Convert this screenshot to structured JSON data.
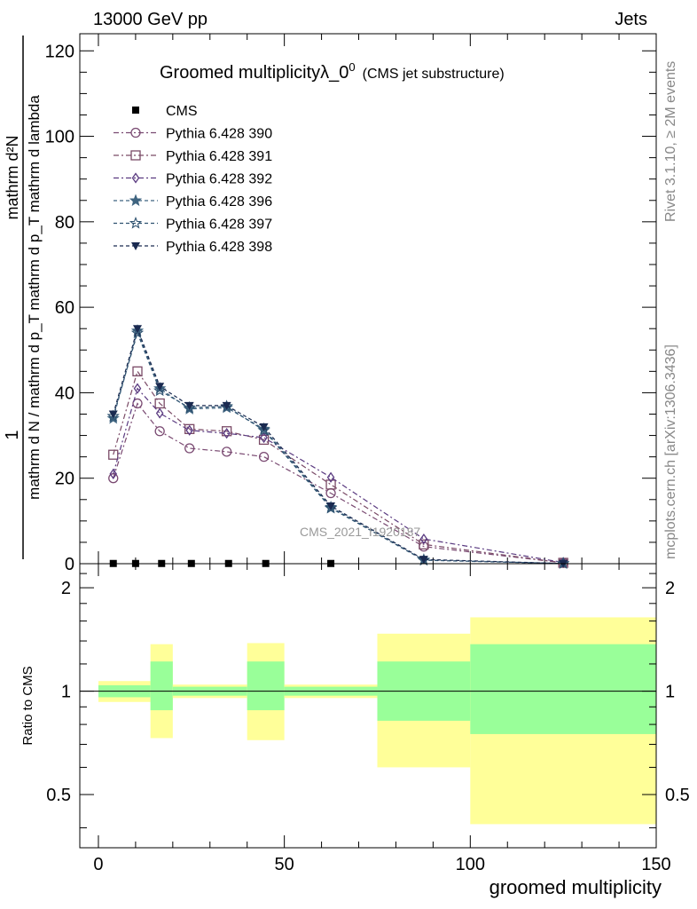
{
  "header": {
    "left": "13000 GeV pp",
    "right": "Jets"
  },
  "side": {
    "rivet": "Rivet 3.1.10, ≥ 2M events",
    "mcplots": "mcplots.cern.ch [arXiv:1306.3436]"
  },
  "watermark": "CMS_2021_I1920187",
  "chart_data": [
    {
      "type": "line",
      "title": "Groomed multiplicityλ_0",
      "title_sup": "0",
      "subtitle": "(CMS jet substructure)",
      "ylabel_numerator": "1",
      "ylabel_denominator": "mathrm d N / mathrm d p_T mathrm d p_T mathrm d lambda",
      "ylabel_top": "mathrm d²N",
      "xlim": [
        -5,
        150
      ],
      "ylim": [
        0,
        124
      ],
      "yticks": [
        0,
        20,
        40,
        60,
        80,
        100,
        120
      ],
      "legend_position": "top-left",
      "series": [
        {
          "name": "CMS",
          "color": "#000000",
          "marker": "filled-square",
          "x": [
            4,
            10,
            17,
            25,
            35,
            45,
            62.5
          ],
          "y": [
            0.05,
            0.05,
            0.05,
            0.05,
            0.05,
            0.05,
            0.05
          ]
        },
        {
          "name": "Pythia 6.428 390",
          "color": "#7a4a72",
          "marker": "open-circle",
          "x": [
            4,
            10.5,
            16.5,
            24.5,
            34.5,
            44.5,
            62.5,
            87.5,
            125
          ],
          "y": [
            20,
            37.5,
            31,
            27,
            26.2,
            25,
            16.5,
            4,
            0.2
          ]
        },
        {
          "name": "Pythia 6.428 391",
          "color": "#7a4a66",
          "marker": "open-square",
          "x": [
            4,
            10.5,
            16.5,
            24.5,
            34.5,
            44.5,
            62.5,
            87.5,
            125
          ],
          "y": [
            25.5,
            45,
            37.5,
            31.5,
            31,
            29,
            18.5,
            4.5,
            0.2
          ]
        },
        {
          "name": "Pythia 6.428 392",
          "color": "#5a3a80",
          "marker": "open-diamond",
          "x": [
            4,
            10.5,
            16.5,
            24.5,
            34.5,
            44.5,
            62.5,
            87.5,
            125
          ],
          "y": [
            21,
            41,
            35.2,
            31.2,
            30.5,
            29.5,
            20.2,
            5.8,
            0.3
          ]
        },
        {
          "name": "Pythia 6.428 396",
          "color": "#3f6480",
          "marker": "filled-star",
          "x": [
            4,
            10.5,
            16.5,
            24.5,
            34.5,
            44.5,
            62.5,
            87.5,
            125
          ],
          "y": [
            34,
            54.5,
            41,
            36.2,
            36.5,
            31.5,
            13.2,
            0.9,
            0.05
          ]
        },
        {
          "name": "Pythia 6.428 397",
          "color": "#2e5270",
          "marker": "open-star",
          "x": [
            4,
            10.5,
            16.5,
            24.5,
            34.5,
            44.5,
            62.5,
            87.5,
            125
          ],
          "y": [
            34.5,
            54,
            40.5,
            36.5,
            36.8,
            31.2,
            13,
            0.8,
            0.05
          ]
        },
        {
          "name": "Pythia 6.428 398",
          "color": "#1a2a50",
          "marker": "filled-down-triangle",
          "x": [
            4,
            10.5,
            16.5,
            24.5,
            34.5,
            44.5,
            62.5,
            87.5,
            125
          ],
          "y": [
            35,
            55,
            41.5,
            37,
            37,
            32,
            13.5,
            1,
            0.05
          ]
        }
      ]
    },
    {
      "type": "area",
      "ylabel": "Ratio to CMS",
      "xlabel": "groomed multiplicity",
      "xlim": [
        -5,
        150
      ],
      "ylim": [
        0.35,
        2.35
      ],
      "yticks": [
        0.5,
        1,
        2
      ],
      "xticks": [
        0,
        50,
        100,
        150
      ],
      "bands": [
        {
          "x0": 0,
          "x1": 14,
          "inner": [
            0.96,
            1.04
          ],
          "outer": [
            0.93,
            1.07
          ]
        },
        {
          "x0": 14,
          "x1": 20,
          "inner": [
            0.88,
            1.22
          ],
          "outer": [
            0.73,
            1.37
          ]
        },
        {
          "x0": 20,
          "x1": 40,
          "inner": [
            0.97,
            1.03
          ],
          "outer": [
            0.955,
            1.045
          ]
        },
        {
          "x0": 40,
          "x1": 50,
          "inner": [
            0.88,
            1.22
          ],
          "outer": [
            0.72,
            1.38
          ]
        },
        {
          "x0": 50,
          "x1": 75,
          "inner": [
            0.97,
            1.03
          ],
          "outer": [
            0.955,
            1.045
          ]
        },
        {
          "x0": 75,
          "x1": 100,
          "inner": [
            0.82,
            1.22
          ],
          "outer": [
            0.6,
            1.47
          ]
        },
        {
          "x0": 100,
          "x1": 150,
          "inner": [
            0.75,
            1.37
          ],
          "outer": [
            0.41,
            1.64
          ]
        }
      ]
    }
  ]
}
